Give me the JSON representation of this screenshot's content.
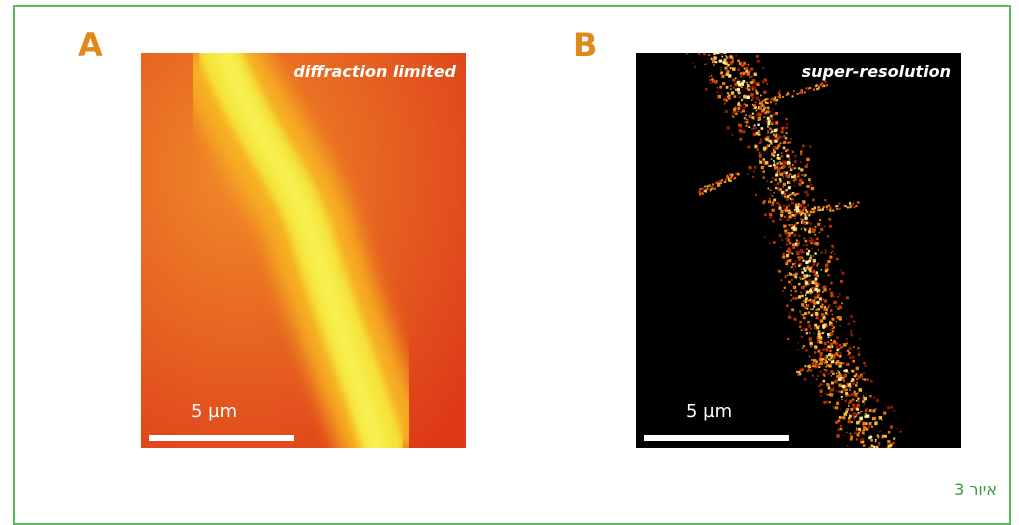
{
  "panels": [
    {
      "label": "A",
      "caption": "diffraction limited",
      "scale": "5 µm"
    },
    {
      "label": "B",
      "caption": "super-resolution",
      "scale": "5 µm"
    }
  ],
  "figure_caption": "איור 3"
}
